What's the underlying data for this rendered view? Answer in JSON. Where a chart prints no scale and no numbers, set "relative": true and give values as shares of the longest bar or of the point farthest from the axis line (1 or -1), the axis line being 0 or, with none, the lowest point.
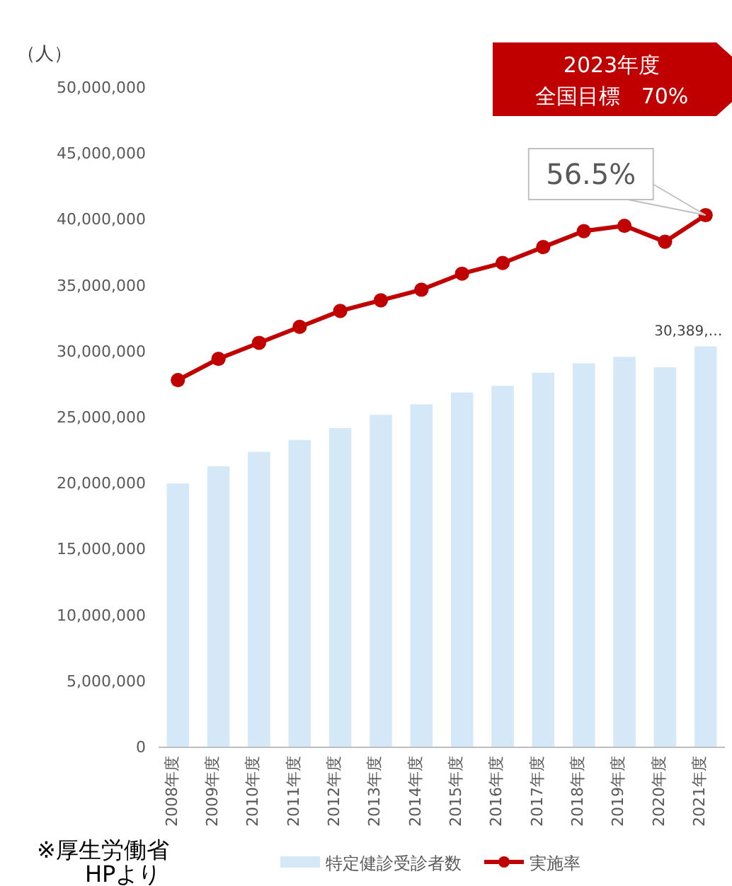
{
  "chart_data": [
    {
      "type": "bar",
      "ylabel": "（人）",
      "categories": [
        "2008年度",
        "2009年度",
        "2010年度",
        "2011年度",
        "2012年度",
        "2013年度",
        "2014年度",
        "2015年度",
        "2016年度",
        "2017年度",
        "2018年度",
        "2019年度",
        "2020年度",
        "2021年度"
      ],
      "series": [
        {
          "name": "特定健診受診者数",
          "color": "#d5e8f7",
          "values": [
            20000000,
            21300000,
            22400000,
            23300000,
            24200000,
            25200000,
            26000000,
            26900000,
            27400000,
            28400000,
            29100000,
            29600000,
            28800000,
            30389000
          ],
          "value_labels": [
            null,
            null,
            null,
            null,
            null,
            null,
            null,
            null,
            null,
            null,
            null,
            null,
            null,
            "30,389,…"
          ]
        }
      ],
      "ylim": [
        0,
        50000000
      ],
      "yticks": [
        {
          "value": 0,
          "label": "0"
        },
        {
          "value": 5000000,
          "label": "5,000,000"
        },
        {
          "value": 10000000,
          "label": "10,000,000"
        },
        {
          "value": 15000000,
          "label": "15,000,000"
        },
        {
          "value": 20000000,
          "label": "20,000,000"
        },
        {
          "value": 25000000,
          "label": "25,000,000"
        },
        {
          "value": 30000000,
          "label": "30,000,000"
        },
        {
          "value": 35000000,
          "label": "35,000,000"
        },
        {
          "value": 40000000,
          "label": "40,000,000"
        },
        {
          "value": 45000000,
          "label": "45,000,000"
        },
        {
          "value": 50000000,
          "label": "50,000,000"
        }
      ],
      "legend": "bottom",
      "grid": false,
      "annotations": [
        "2023年度全国目標　70%",
        "※厚生労働省HPより"
      ]
    },
    {
      "type": "line",
      "relative": true,
      "tick_labels": false,
      "categories": [
        "2008年度",
        "2009年度",
        "2010年度",
        "2011年度",
        "2012年度",
        "2013年度",
        "2014年度",
        "2015年度",
        "2016年度",
        "2017年度",
        "2018年度",
        "2019年度",
        "2020年度",
        "2021年度"
      ],
      "series": [
        {
          "name": "実施率",
          "color": "#c00000",
          "values": [
            0.69,
            0.73,
            0.76,
            0.79,
            0.82,
            0.84,
            0.86,
            0.89,
            0.91,
            0.94,
            0.97,
            0.98,
            0.95,
            1
          ]
        }
      ],
      "marker": "circle",
      "annotations": [
        {
          "text": "56.5%",
          "x": "2021年度",
          "y": 1
        }
      ]
    }
  ]
}
